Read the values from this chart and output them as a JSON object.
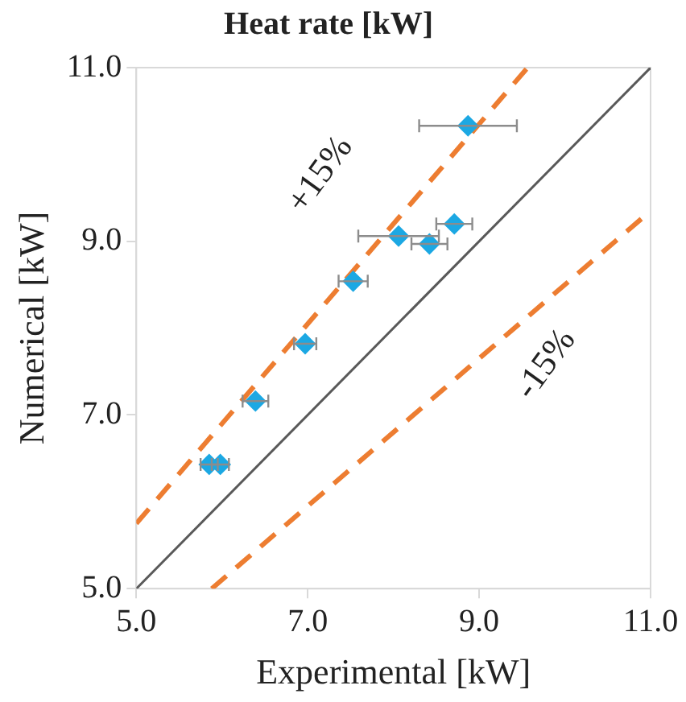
{
  "chart_data": {
    "type": "scatter",
    "title": "Heat rate [kW]",
    "xlabel": "Experimental [kW]",
    "ylabel": "Numerical [kW]",
    "xlim": [
      5,
      11
    ],
    "ylim": [
      5,
      11
    ],
    "xticks": [
      {
        "value": 5,
        "label": "5.0"
      },
      {
        "value": 7,
        "label": "7.0"
      },
      {
        "value": 9,
        "label": "9.0"
      },
      {
        "value": 11,
        "label": "11.0"
      }
    ],
    "yticks": [
      {
        "value": 5,
        "label": "5.0"
      },
      {
        "value": 7,
        "label": "7.0"
      },
      {
        "value": 9,
        "label": "9.0"
      },
      {
        "value": 11,
        "label": "11.0"
      }
    ],
    "grid": false,
    "legend": false,
    "series": [
      {
        "type": "line",
        "color": "#595959",
        "line_style": "solid",
        "marker": "none",
        "x": [
          5,
          11
        ],
        "values": [
          5,
          11
        ]
      },
      {
        "type": "line",
        "color": "#ed7d31",
        "line_style": "dashed",
        "marker": "none",
        "x": [
          5,
          9.565
        ],
        "values": [
          5.75,
          11
        ]
      },
      {
        "type": "line",
        "color": "#ed7d31",
        "line_style": "dashed",
        "marker": "none",
        "x": [
          5.88,
          11
        ],
        "values": [
          5,
          9.35
        ]
      },
      {
        "type": "scatter",
        "color": "#1ca8e3",
        "marker": "diamond",
        "x": [
          5.85,
          5.98,
          6.39,
          6.97,
          7.53,
          8.06,
          8.42,
          8.71,
          8.87
        ],
        "values": [
          6.43,
          6.43,
          7.16,
          7.82,
          8.54,
          9.06,
          8.97,
          9.2,
          10.33
        ],
        "xerrors": [
          0.1,
          0.1,
          0.15,
          0.13,
          0.17,
          0.47,
          0.21,
          0.21,
          0.57
        ]
      }
    ],
    "annotations": [
      "+15%",
      "-15%"
    ]
  }
}
